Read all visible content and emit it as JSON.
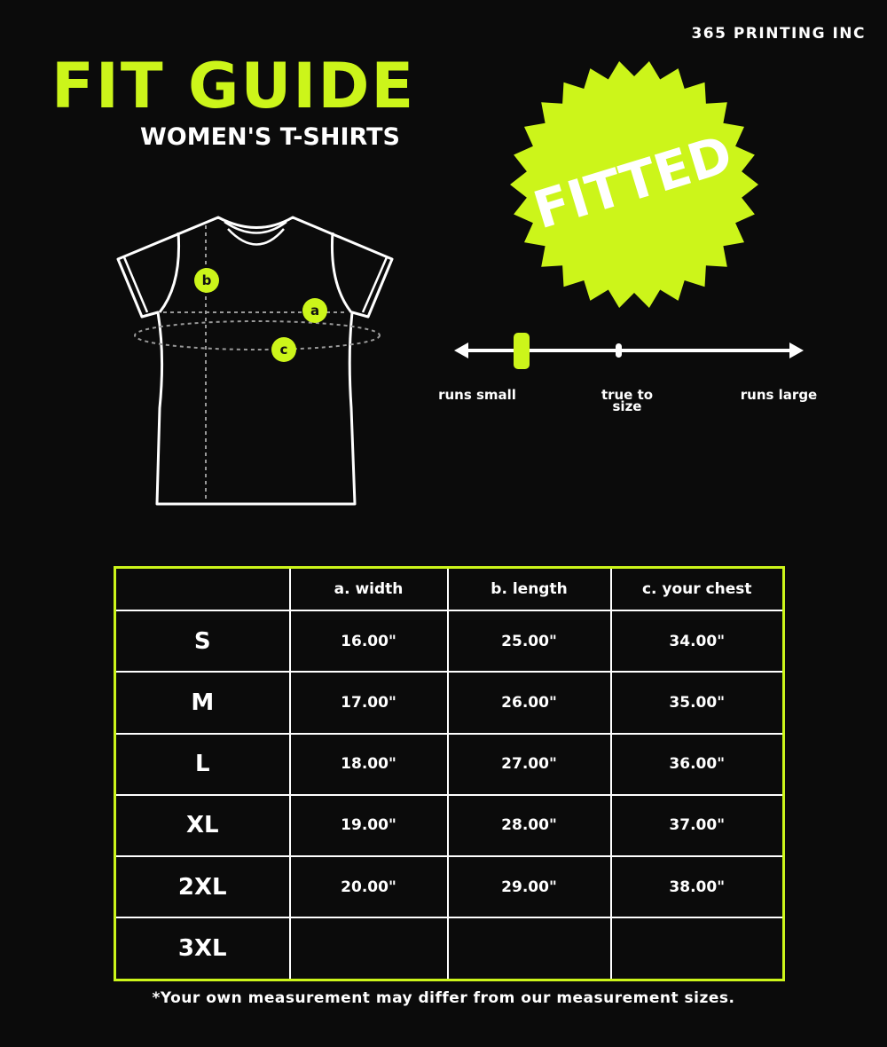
{
  "brand": "365 PRINTING INC",
  "title": "FIT GUIDE",
  "subtitle": "WOMEN'S T-SHIRTS",
  "badge": "FITTED",
  "accent_color": "#ccf51a",
  "diagram": {
    "labels": [
      "a",
      "b",
      "c"
    ]
  },
  "fit_scale": {
    "labels": [
      "runs small",
      "true to size",
      "runs large"
    ],
    "position_percent": 18
  },
  "table": {
    "headers": [
      "",
      "a. width",
      "b. length",
      "c. your chest"
    ],
    "rows": [
      [
        "S",
        "16.00\"",
        "25.00\"",
        "34.00\""
      ],
      [
        "M",
        "17.00\"",
        "26.00\"",
        "35.00\""
      ],
      [
        "L",
        "18.00\"",
        "27.00\"",
        "36.00\""
      ],
      [
        "XL",
        "19.00\"",
        "28.00\"",
        "37.00\""
      ],
      [
        "2XL",
        "20.00\"",
        "29.00\"",
        "38.00\""
      ],
      [
        "3XL",
        "",
        "",
        ""
      ]
    ]
  },
  "note": "*Your own measurement may differ from our measurement sizes."
}
